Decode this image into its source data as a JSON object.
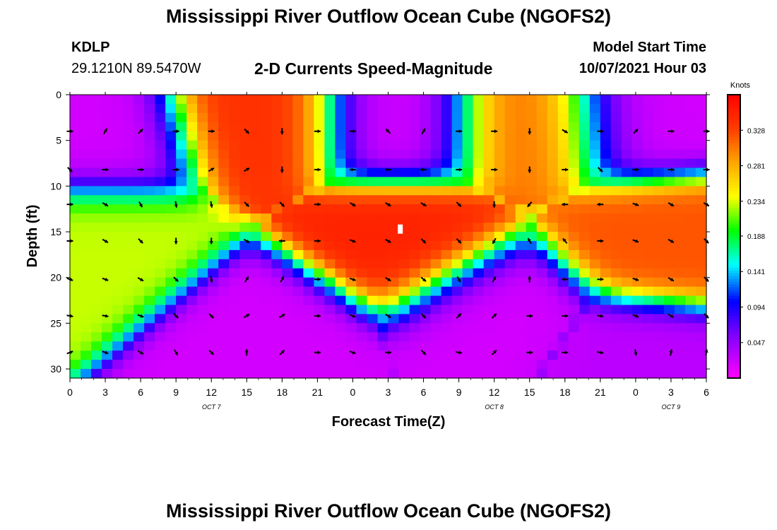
{
  "header": {
    "title": "Mississippi River Outflow Ocean Cube (NGOFS2)",
    "station_id": "KDLP",
    "station_coords": "29.1210N  89.5470W",
    "plot_title": "2-D Currents Speed-Magnitude",
    "model_label": "Model Start Time",
    "model_time": "10/07/2021 Hour 03"
  },
  "footer": {
    "title": "Mississippi River Outflow Ocean Cube (NGOFS2)"
  },
  "chart_data": {
    "type": "heatmap",
    "xlabel": "Forecast Time(Z)",
    "ylabel": "Depth (ft)",
    "x_tick_labels": [
      "0",
      "3",
      "6",
      "9",
      "12",
      "15",
      "18",
      "21",
      "0",
      "3",
      "6",
      "9",
      "12",
      "15",
      "18",
      "21",
      "0",
      "3",
      "6"
    ],
    "date_labels": [
      {
        "label": "OCT 7",
        "tick_index": 4
      },
      {
        "label": "OCT 8",
        "tick_index": 12
      },
      {
        "label": "OCT 9",
        "tick_index": 17
      }
    ],
    "xlim": [
      0,
      54
    ],
    "ylim": [
      0,
      31
    ],
    "y_ticks": [
      0,
      5,
      10,
      15,
      20,
      25,
      30
    ],
    "colorbar": {
      "title": "Knots",
      "min": 0,
      "max": 0.375,
      "ticks": [
        "0.047",
        "0.094",
        "0.141",
        "0.188",
        "0.234",
        "0.281",
        "0.328"
      ],
      "tick_values": [
        0.047,
        0.094,
        0.141,
        0.188,
        0.234,
        0.281,
        0.328
      ]
    },
    "speed_features": [
      {
        "x": 3,
        "y": 5,
        "speed": 0.02
      },
      {
        "x": 16,
        "y": 3,
        "speed": 0.34
      },
      {
        "x": 28,
        "y": 3,
        "speed": 0.02
      },
      {
        "x": 39,
        "y": 3,
        "speed": 0.31
      },
      {
        "x": 48.5,
        "y": 2.5,
        "speed": 0.02
      },
      {
        "x": 3,
        "y": 16,
        "speed": 0.23
      },
      {
        "x": 28,
        "y": 16,
        "speed": 0.35
      },
      {
        "x": 50,
        "y": 16,
        "speed": 0.32
      },
      {
        "x": 17,
        "y": 26,
        "speed": 0.02
      },
      {
        "x": 36,
        "y": 24,
        "speed": 0.02
      },
      {
        "x": 48,
        "y": 29,
        "speed": 0.03
      }
    ],
    "vectors": {
      "x_times": [
        0,
        3,
        6,
        9,
        12,
        15,
        18,
        21,
        24,
        27,
        30,
        33,
        36,
        39,
        42,
        45,
        48,
        51,
        54
      ],
      "depths": [
        0,
        4,
        8.2,
        12,
        16,
        20.2,
        24.2,
        28.2
      ],
      "angles_deg": [
        [
          130,
          100,
          90,
          90,
          100,
          90,
          90,
          60,
          50,
          90,
          90,
          90,
          120,
          90,
          90,
          90,
          90,
          90,
          90
        ],
        [
          0,
          -60,
          -45,
          0,
          0,
          45,
          90,
          0,
          0,
          -135,
          -60,
          0,
          0,
          90,
          30,
          0,
          -45,
          0,
          0
        ],
        [
          45,
          0,
          0,
          0,
          -30,
          -30,
          90,
          0,
          180,
          180,
          180,
          0,
          0,
          90,
          0,
          45,
          0,
          0,
          0
        ],
        [
          0,
          30,
          60,
          80,
          80,
          45,
          45,
          0,
          30,
          30,
          30,
          45,
          90,
          130,
          180,
          180,
          20,
          30,
          30
        ],
        [
          0,
          30,
          45,
          90,
          90,
          30,
          180,
          0,
          20,
          30,
          45,
          45,
          120,
          -120,
          -130,
          0,
          20,
          30,
          45
        ],
        [
          20,
          20,
          30,
          45,
          80,
          -60,
          -60,
          0,
          20,
          30,
          40,
          60,
          -60,
          -90,
          180,
          0,
          20,
          30,
          45
        ],
        [
          10,
          10,
          20,
          45,
          45,
          -30,
          -30,
          0,
          20,
          30,
          45,
          -45,
          -45,
          0,
          0,
          10,
          20,
          30,
          45
        ],
        [
          -20,
          20,
          30,
          60,
          45,
          -90,
          -45,
          0,
          20,
          0,
          45,
          10,
          -45,
          0,
          0,
          10,
          80,
          -80,
          -80
        ]
      ]
    },
    "grid": false,
    "legend": "colorbar-right"
  }
}
